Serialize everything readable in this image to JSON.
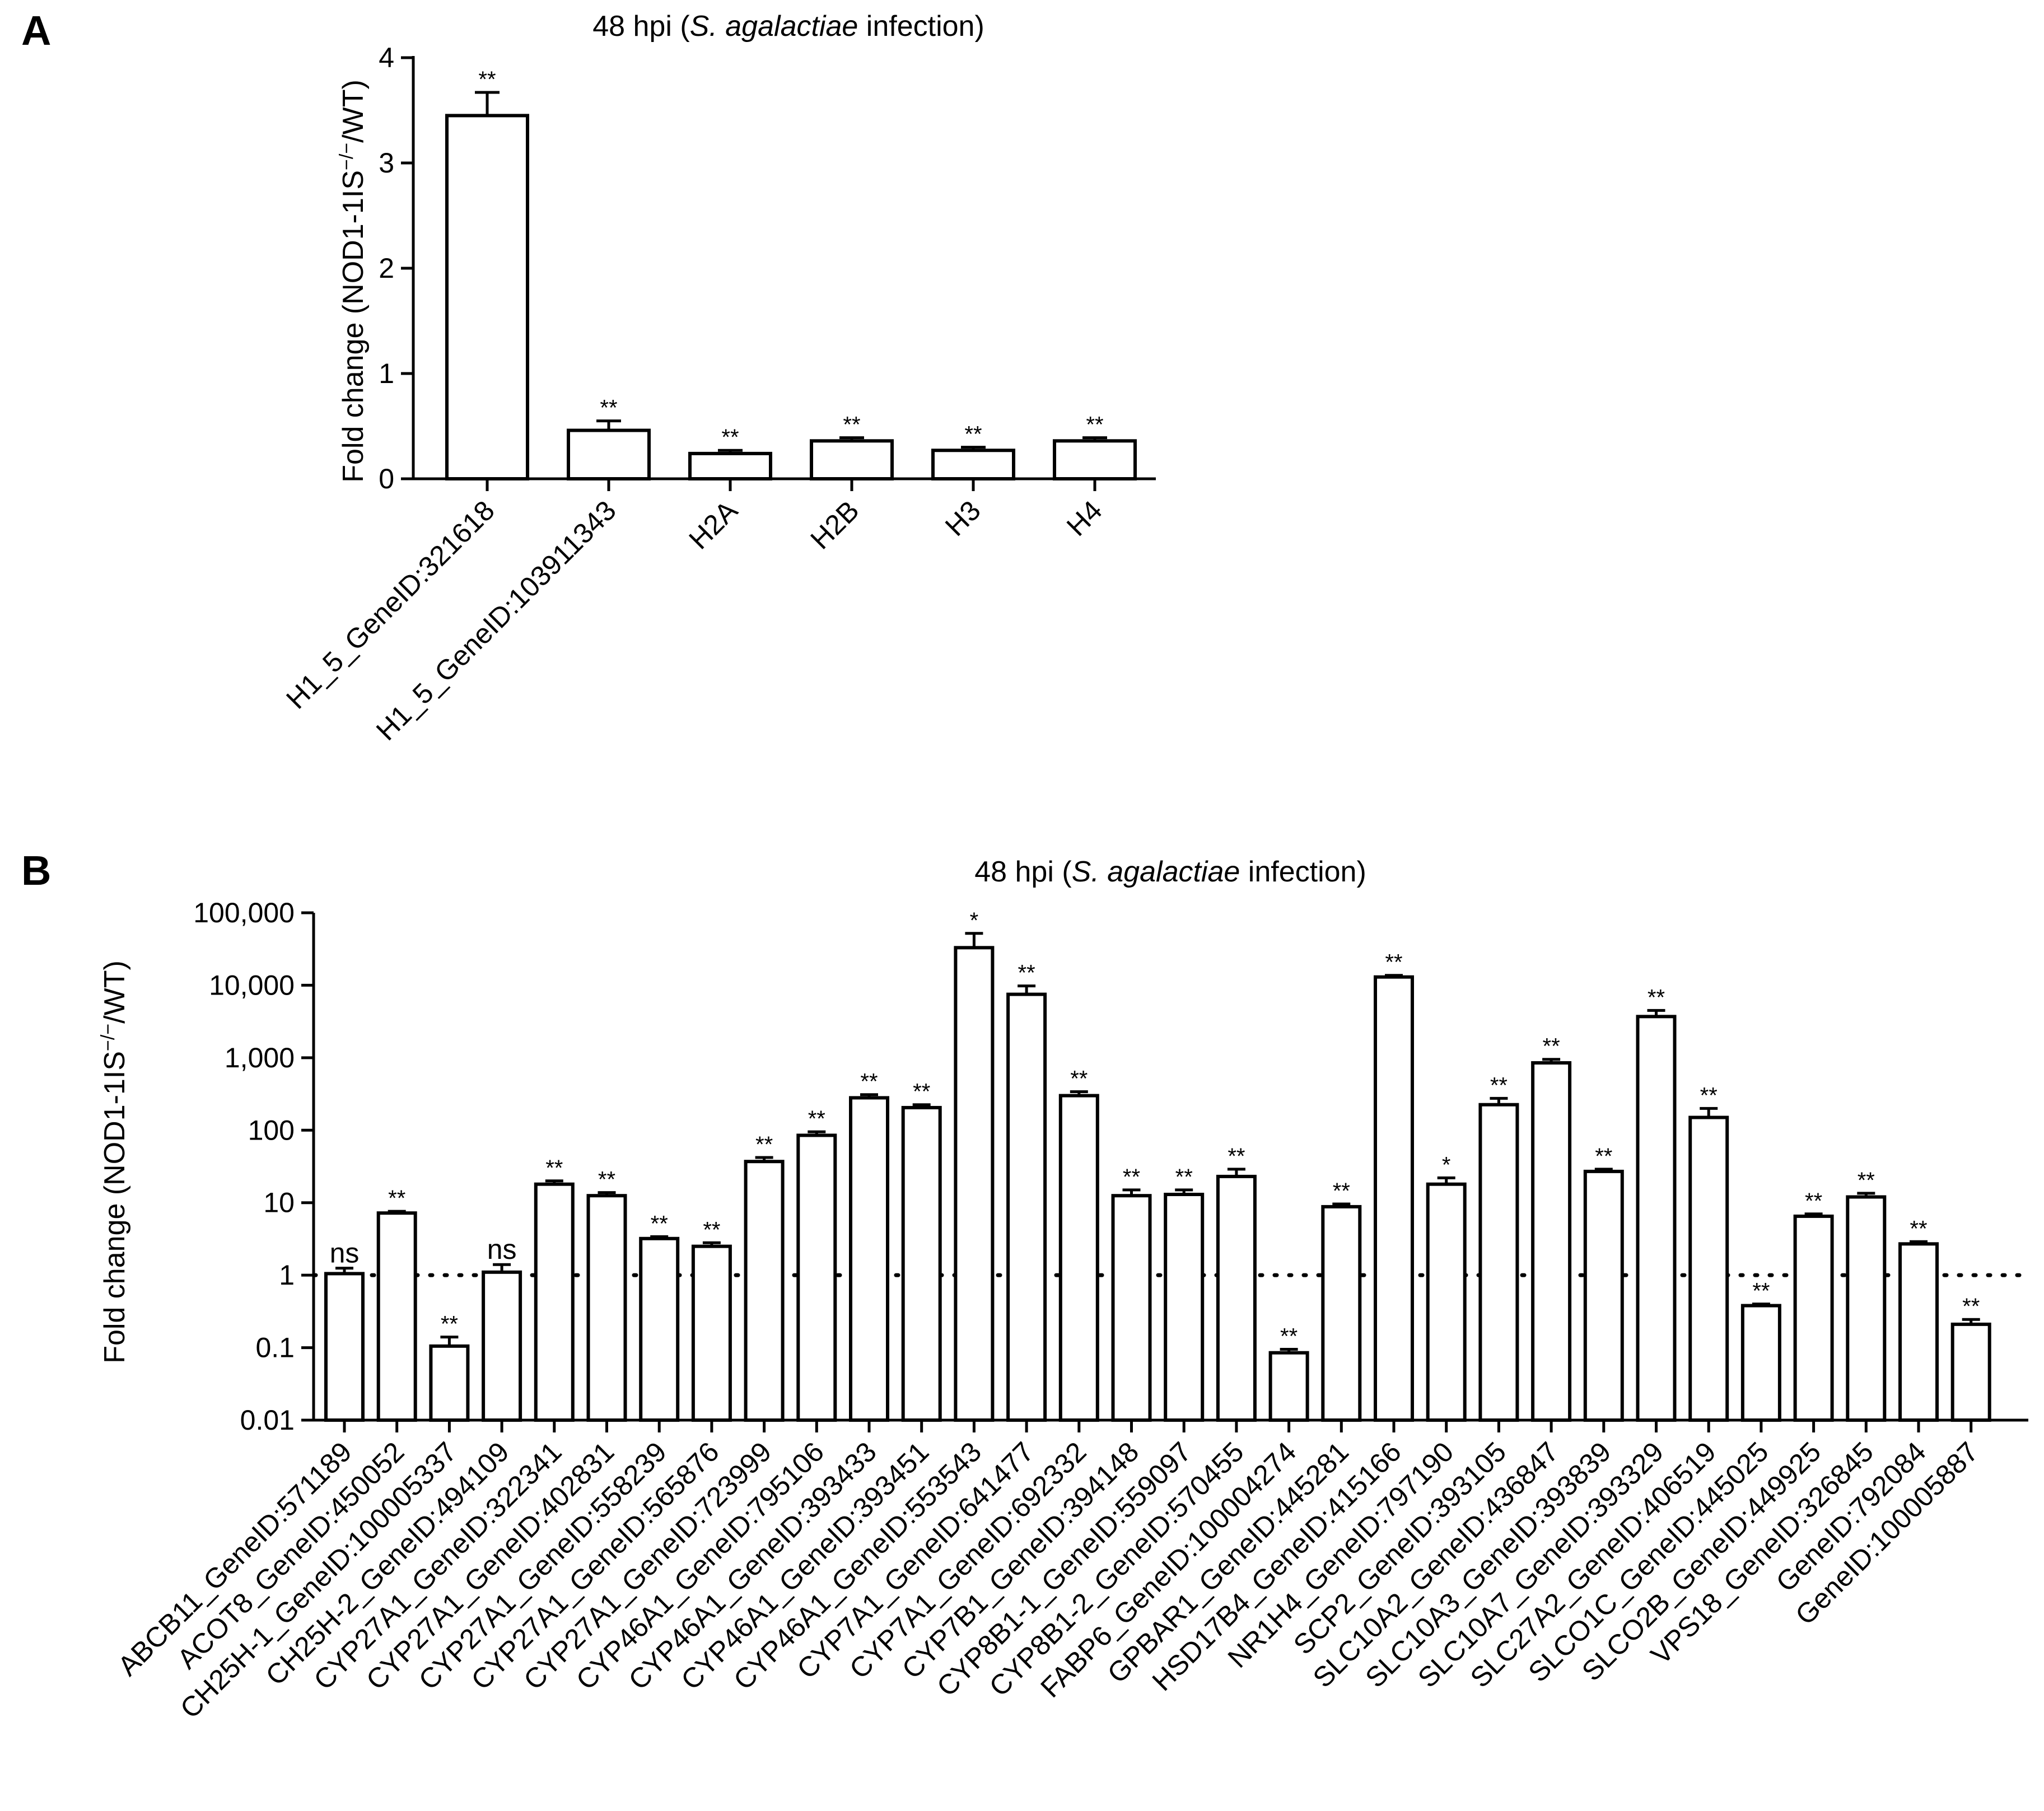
{
  "chart_data": [
    {
      "panel": "A",
      "type": "bar",
      "title_parts": [
        "48 hpi (",
        "S. agalactiae",
        " infection)"
      ],
      "ylabel_parts": [
        "Fold change (NOD1-1IS",
        "−/−",
        "/WT)"
      ],
      "y_scale": "linear",
      "ylim": [
        0,
        4
      ],
      "yticks": [
        0,
        1,
        2,
        3,
        4
      ],
      "ytick_labels": [
        "0",
        "1",
        "2",
        "3",
        "4"
      ],
      "categories": [
        "H1_5_GeneID:321618",
        "H1_5_GeneID:103911343",
        "H2A",
        "H2B",
        "H3",
        "H4"
      ],
      "values": [
        3.45,
        0.46,
        0.24,
        0.36,
        0.27,
        0.36
      ],
      "errors": [
        0.22,
        0.09,
        0.03,
        0.03,
        0.03,
        0.03
      ],
      "significance": [
        "**",
        "**",
        "**",
        "**",
        "**",
        "**"
      ]
    },
    {
      "panel": "B",
      "type": "bar",
      "title_parts": [
        "48 hpi (",
        "S. agalactiae",
        " infection)"
      ],
      "ylabel_parts": [
        "Fold change (NOD1-1IS",
        "−/−",
        "/WT)"
      ],
      "y_scale": "log",
      "ylim": [
        0.01,
        100000
      ],
      "yticks": [
        0.01,
        0.1,
        1,
        10,
        100,
        1000,
        10000,
        100000
      ],
      "ytick_labels": [
        "0.01",
        "0.1",
        "1",
        "10",
        "100",
        "1,000",
        "10,000",
        "100,000"
      ],
      "reference_line": 1,
      "categories": [
        "ABCB11_GeneID:571189",
        "ACOT8_GeneID:450052",
        "CH25H-1_GeneID:100005337",
        "CH25H-2_GeneID:494109",
        "CYP27A1_GeneID:322341",
        "CYP27A1_GeneID:402831",
        "CYP27A1_GeneID:558239",
        "CYP27A1_GeneID:565876",
        "CYP27A1_GeneID:723999",
        "CYP46A1_GeneID:795106",
        "CYP46A1_GeneID:393433",
        "CYP46A1_GeneID:393451",
        "CYP46A1_GeneID:553543",
        "CYP7A1_GeneID:641477",
        "CYP7A1_GeneID:692332",
        "CYP7B1_GeneID:394148",
        "CYP8B1-1_GeneID:559097",
        "CYP8B1-2_GeneID:570455",
        "FABP6_GeneID:100004274",
        "GPBAR1_GeneID:445281",
        "HSD17B4_GeneID:415166",
        "NR1H4_GeneID:797190",
        "SCP2_GeneID:393105",
        "SLC10A2_GeneID:436847",
        "SLC10A3_GeneID:393839",
        "SLC10A7_GeneID:393329",
        "SLC27A2_GeneID:406519",
        "SLCO1C_GeneID:445025",
        "SLCO2B_GeneID:449925",
        "VPS18_GeneID:326845",
        "GeneID:792084",
        "GeneID:100005887"
      ],
      "values": [
        1.05,
        7.2,
        0.105,
        1.1,
        18,
        12.5,
        3.2,
        2.5,
        37,
        85,
        280,
        205,
        33000,
        7500,
        300,
        12.5,
        13,
        23,
        0.085,
        8.8,
        13000,
        18,
        225,
        850,
        27,
        3700,
        150,
        0.38,
        6.5,
        12,
        2.7,
        0.21
      ],
      "error_upper": [
        1.25,
        7.6,
        0.14,
        1.4,
        20,
        13.8,
        3.4,
        2.8,
        42,
        95,
        310,
        225,
        52000,
        9800,
        340,
        15,
        15,
        29,
        0.095,
        9.6,
        13700,
        22,
        275,
        950,
        29,
        4500,
        200,
        0.4,
        7,
        13.5,
        2.9,
        0.245
      ],
      "significance": [
        "ns",
        "**",
        "**",
        "ns",
        "**",
        "**",
        "**",
        "**",
        "**",
        "**",
        "**",
        "**",
        "*",
        "**",
        "**",
        "**",
        "**",
        "**",
        "**",
        "**",
        "**",
        "*",
        "**",
        "**",
        "**",
        "**",
        "**",
        "**",
        "**",
        "**",
        "**",
        "**"
      ]
    }
  ],
  "panel_labels": [
    "A",
    "B"
  ]
}
